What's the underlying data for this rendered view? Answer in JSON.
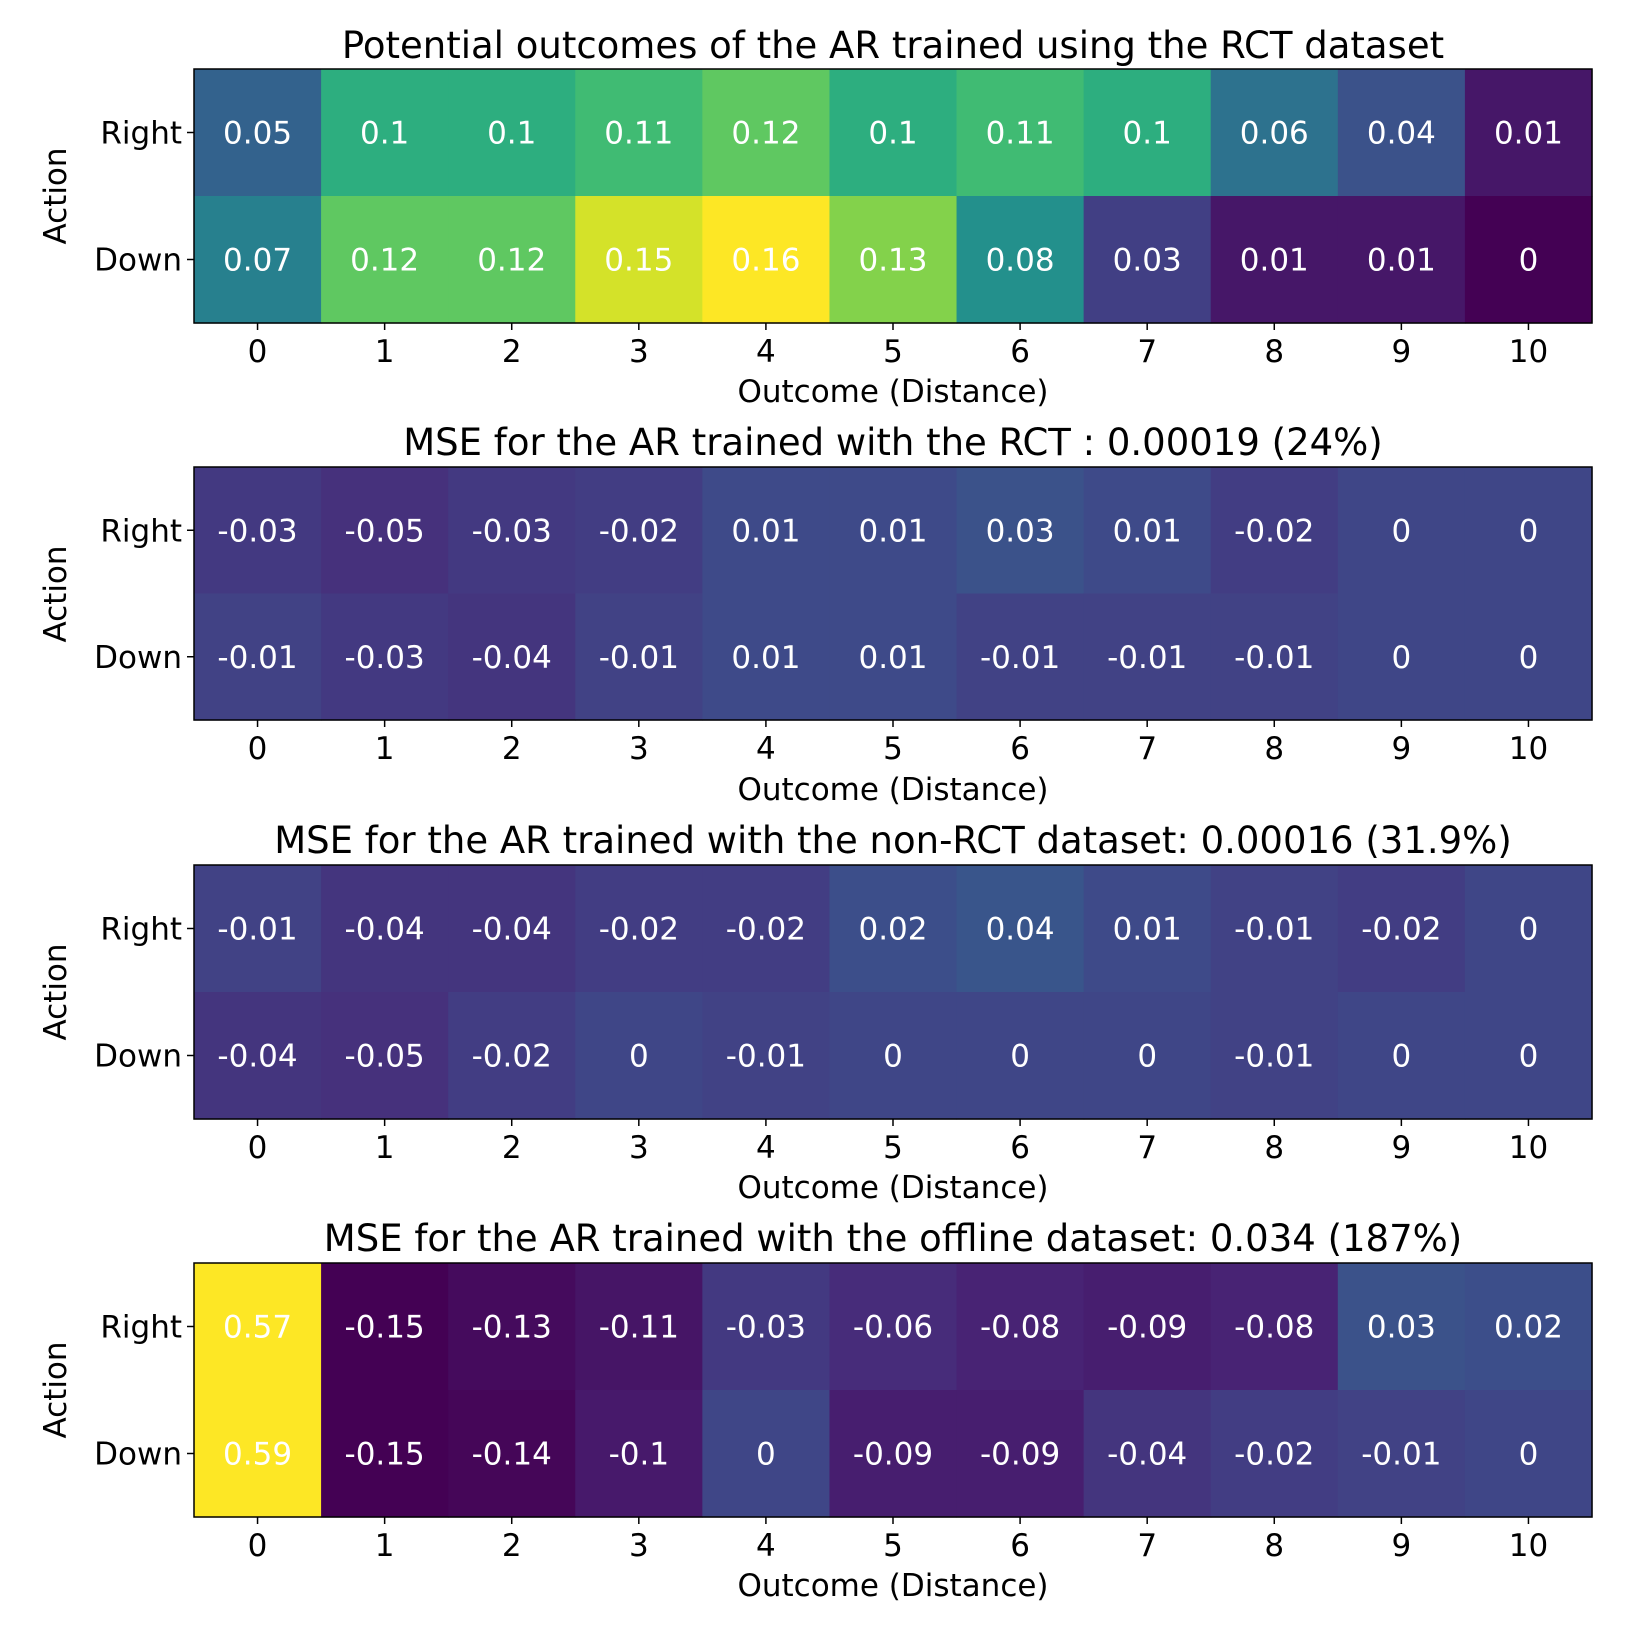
{
  "chart_data": [
    {
      "type": "heatmap",
      "title": "Potential outcomes of the AR trained using the RCT dataset",
      "xlabel": "Outcome (Distance)",
      "ylabel": "Action",
      "x": [
        "0",
        "1",
        "2",
        "3",
        "4",
        "5",
        "6",
        "7",
        "8",
        "9",
        "10"
      ],
      "y": [
        "Right",
        "Down"
      ],
      "values": [
        [
          0.05,
          0.1,
          0.1,
          0.11,
          0.12,
          0.1,
          0.11,
          0.1,
          0.06,
          0.04,
          0.01
        ],
        [
          0.07,
          0.12,
          0.12,
          0.15,
          0.16,
          0.13,
          0.08,
          0.03,
          0.01,
          0.01,
          0
        ]
      ],
      "vmin": 0,
      "vmax": 0.16,
      "colormap": "viridis"
    },
    {
      "type": "heatmap",
      "title": "MSE for the AR trained with the RCT : 0.00019 (24%)",
      "xlabel": "Outcome (Distance)",
      "ylabel": "Action",
      "x": [
        "0",
        "1",
        "2",
        "3",
        "4",
        "5",
        "6",
        "7",
        "8",
        "9",
        "10"
      ],
      "y": [
        "Right",
        "Down"
      ],
      "values": [
        [
          -0.03,
          -0.05,
          -0.03,
          -0.02,
          0.01,
          0.01,
          0.03,
          0.01,
          -0.02,
          0,
          0
        ],
        [
          -0.01,
          -0.03,
          -0.04,
          -0.01,
          0.01,
          0.01,
          -0.01,
          -0.01,
          -0.01,
          0,
          0
        ]
      ],
      "vmin": -0.15,
      "vmax": 0.57,
      "colormap": "viridis"
    },
    {
      "type": "heatmap",
      "title": "MSE for the AR trained with the non-RCT dataset: 0.00016 (31.9%)",
      "xlabel": "Outcome (Distance)",
      "ylabel": "Action",
      "x": [
        "0",
        "1",
        "2",
        "3",
        "4",
        "5",
        "6",
        "7",
        "8",
        "9",
        "10"
      ],
      "y": [
        "Right",
        "Down"
      ],
      "values": [
        [
          -0.01,
          -0.04,
          -0.04,
          -0.02,
          -0.02,
          0.02,
          0.04,
          0.01,
          -0.01,
          -0.02,
          0
        ],
        [
          -0.04,
          -0.05,
          -0.02,
          0,
          -0.01,
          0,
          0,
          0,
          -0.01,
          0,
          0
        ]
      ],
      "vmin": -0.15,
      "vmax": 0.57,
      "colormap": "viridis"
    },
    {
      "type": "heatmap",
      "title": "MSE for the AR trained with the offline dataset: 0.034 (187%)",
      "xlabel": "Outcome (Distance)",
      "ylabel": "Action",
      "x": [
        "0",
        "1",
        "2",
        "3",
        "4",
        "5",
        "6",
        "7",
        "8",
        "9",
        "10"
      ],
      "y": [
        "Right",
        "Down"
      ],
      "values": [
        [
          0.57,
          -0.15,
          -0.13,
          -0.11,
          -0.03,
          -0.06,
          -0.08,
          -0.09,
          -0.08,
          0.03,
          0.02
        ],
        [
          0.59,
          -0.15,
          -0.14,
          -0.1,
          0,
          -0.09,
          -0.09,
          -0.04,
          -0.02,
          -0.01,
          0
        ]
      ],
      "vmin": -0.15,
      "vmax": 0.57,
      "colormap": "viridis"
    }
  ]
}
